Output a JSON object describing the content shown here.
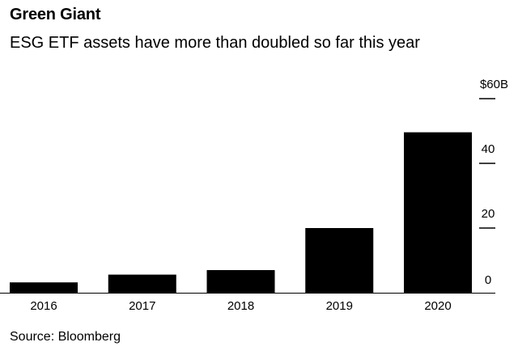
{
  "header": {
    "title": "Green Giant",
    "subtitle": "ESG ETF assets have more than doubled so far this year"
  },
  "footer": {
    "source": "Source: Bloomberg"
  },
  "chart_data": {
    "type": "bar",
    "title": "Green Giant",
    "subtitle": "ESG ETF assets have more than doubled so far this year",
    "categories": [
      "2016",
      "2017",
      "2018",
      "2019",
      "2020"
    ],
    "values": [
      3.2,
      5.6,
      7.0,
      20.0,
      49.6
    ],
    "ylim": [
      0,
      60
    ],
    "yticks": [
      0,
      20,
      40,
      60
    ],
    "ytick_labels": [
      "0",
      "20",
      "40",
      "$60B"
    ],
    "y_axis_side": "right",
    "grid": false,
    "bar_color": "#000000",
    "source": "Source: Bloomberg"
  }
}
